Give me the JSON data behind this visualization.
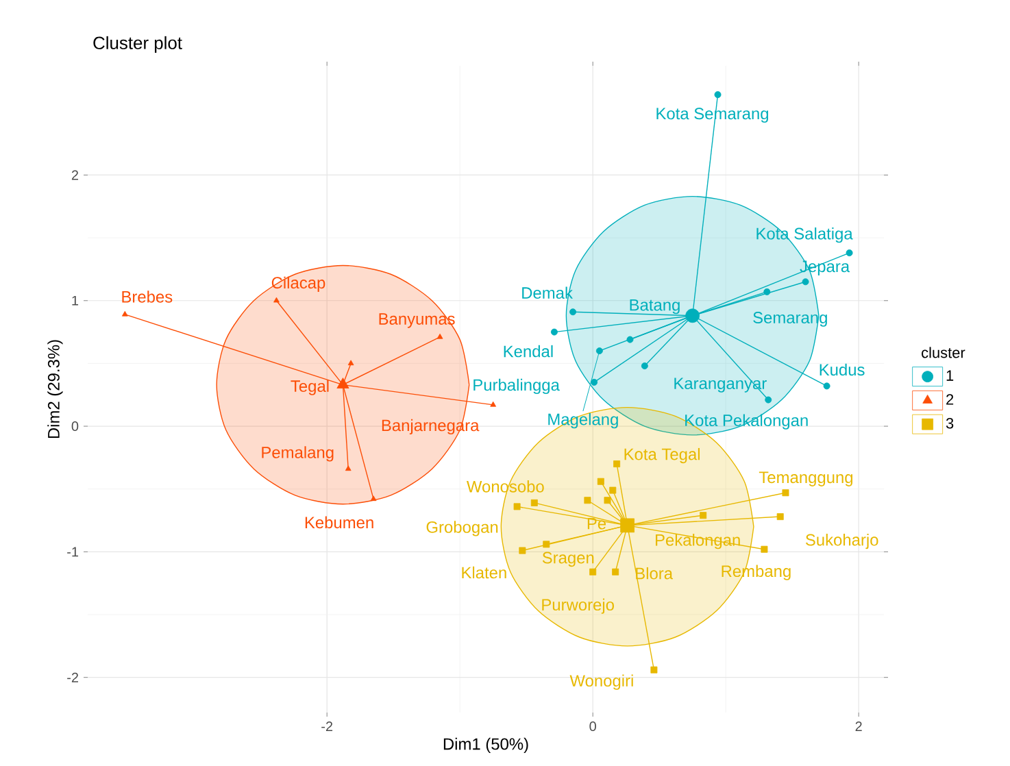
{
  "chart_data": {
    "type": "scatter",
    "title": "Cluster plot",
    "xlabel": "Dim1 (50%)",
    "ylabel": "Dim2 (29.3%)",
    "legend_title": "cluster",
    "legend": "right",
    "grid": true,
    "xlim": [
      -3.8,
      2.19
    ],
    "ylim": [
      -2.28,
      2.87
    ],
    "xticks": [
      -2,
      0,
      2
    ],
    "yticks": [
      -2,
      -1,
      0,
      1,
      2
    ],
    "series": [
      {
        "type": "area",
        "color": "#00AFBB",
        "x": [
          1.7,
          1.63,
          1.42,
          1.11,
          0.75,
          0.39,
          0.08,
          -0.13,
          -0.2,
          -0.13,
          0.08,
          0.39,
          0.75,
          1.11,
          1.42,
          1.63,
          1.7
        ],
        "values": [
          0.88,
          1.24,
          1.55,
          1.76,
          1.83,
          1.76,
          1.55,
          1.24,
          0.88,
          0.52,
          0.21,
          0.0,
          -0.07,
          0.0,
          0.21,
          0.52,
          0.88
        ]
      },
      {
        "type": "area",
        "color": "#FC4E07",
        "x": [
          -0.93,
          -1.0,
          -1.21,
          -1.52,
          -1.88,
          -2.24,
          -2.55,
          -2.76,
          -2.83,
          -2.76,
          -2.55,
          -2.24,
          -1.88,
          -1.52,
          -1.21,
          -1.0,
          -0.93
        ],
        "values": [
          0.33,
          0.69,
          1.0,
          1.21,
          1.28,
          1.21,
          1.0,
          0.69,
          0.33,
          -0.03,
          -0.34,
          -0.55,
          -0.62,
          -0.55,
          -0.34,
          -0.03,
          0.33
        ]
      },
      {
        "type": "area",
        "color": "#E7B800",
        "x": [
          1.21,
          1.14,
          0.93,
          0.62,
          0.26,
          -0.1,
          -0.41,
          -0.62,
          -0.69,
          -0.62,
          -0.41,
          -0.1,
          0.26,
          0.62,
          0.93,
          1.14,
          1.21
        ],
        "values": [
          -0.8,
          -0.44,
          -0.13,
          0.08,
          0.15,
          0.08,
          -0.13,
          -0.44,
          -0.8,
          -1.16,
          -1.47,
          -1.68,
          -1.75,
          -1.68,
          -1.47,
          -1.16,
          -0.8
        ]
      },
      {
        "type": "line",
        "color": "#00AFBB",
        "x": [
          0.75,
          0.94
        ],
        "values": [
          0.88,
          2.64
        ]
      },
      {
        "type": "line",
        "color": "#00AFBB",
        "x": [
          0.75,
          1.93
        ],
        "values": [
          0.88,
          1.38
        ]
      },
      {
        "type": "line",
        "color": "#00AFBB",
        "x": [
          0.75,
          1.6
        ],
        "values": [
          0.88,
          1.15
        ]
      },
      {
        "type": "line",
        "color": "#00AFBB",
        "x": [
          0.75,
          1.31
        ],
        "values": [
          0.88,
          1.07
        ]
      },
      {
        "type": "line",
        "color": "#00AFBB",
        "x": [
          0.75,
          -0.15
        ],
        "values": [
          0.88,
          0.91
        ]
      },
      {
        "type": "line",
        "color": "#00AFBB",
        "x": [
          0.75,
          -0.29
        ],
        "values": [
          0.88,
          0.75
        ]
      },
      {
        "type": "line",
        "color": "#00AFBB",
        "x": [
          0.75,
          0.28
        ],
        "values": [
          0.88,
          0.69
        ]
      },
      {
        "type": "line",
        "color": "#00AFBB",
        "x": [
          0.75,
          0.05
        ],
        "values": [
          0.88,
          0.6
        ]
      },
      {
        "type": "line",
        "color": "#00AFBB",
        "x": [
          0.75,
          0.39
        ],
        "values": [
          0.88,
          0.48
        ]
      },
      {
        "type": "line",
        "color": "#00AFBB",
        "x": [
          0.75,
          0.01
        ],
        "values": [
          0.88,
          0.35
        ]
      },
      {
        "type": "line",
        "color": "#00AFBB",
        "x": [
          0.75,
          1.32
        ],
        "values": [
          0.88,
          0.21
        ]
      },
      {
        "type": "line",
        "color": "#00AFBB",
        "x": [
          0.75,
          1.76
        ],
        "values": [
          0.88,
          0.32
        ]
      },
      {
        "type": "line",
        "color": "#FC4E07",
        "x": [
          -1.88,
          -3.52
        ],
        "values": [
          0.33,
          0.89
        ]
      },
      {
        "type": "line",
        "color": "#FC4E07",
        "x": [
          -1.88,
          -2.38
        ],
        "values": [
          0.33,
          1.0
        ]
      },
      {
        "type": "line",
        "color": "#FC4E07",
        "x": [
          -1.88,
          -1.15
        ],
        "values": [
          0.33,
          0.71
        ]
      },
      {
        "type": "line",
        "color": "#FC4E07",
        "x": [
          -1.88,
          -0.75
        ],
        "values": [
          0.33,
          0.17
        ]
      },
      {
        "type": "line",
        "color": "#FC4E07",
        "x": [
          -1.88,
          -1.82
        ],
        "values": [
          0.33,
          0.5
        ]
      },
      {
        "type": "line",
        "color": "#FC4E07",
        "x": [
          -1.88,
          -1.84
        ],
        "values": [
          0.33,
          -0.34
        ]
      },
      {
        "type": "line",
        "color": "#FC4E07",
        "x": [
          -1.88,
          -1.65
        ],
        "values": [
          0.33,
          -0.58
        ]
      },
      {
        "type": "line",
        "color": "#E7B800",
        "x": [
          0.26,
          0.18
        ],
        "values": [
          -0.79,
          -0.3
        ]
      },
      {
        "type": "line",
        "color": "#E7B800",
        "x": [
          0.26,
          0.06
        ],
        "values": [
          -0.79,
          -0.44
        ]
      },
      {
        "type": "line",
        "color": "#E7B800",
        "x": [
          0.26,
          0.15
        ],
        "values": [
          -0.79,
          -0.51
        ]
      },
      {
        "type": "line",
        "color": "#E7B800",
        "x": [
          0.26,
          -0.04
        ],
        "values": [
          -0.79,
          -0.59
        ]
      },
      {
        "type": "line",
        "color": "#E7B800",
        "x": [
          0.26,
          0.11
        ],
        "values": [
          -0.79,
          -0.59
        ]
      },
      {
        "type": "line",
        "color": "#E7B800",
        "x": [
          0.26,
          -0.44
        ],
        "values": [
          -0.79,
          -0.61
        ]
      },
      {
        "type": "line",
        "color": "#E7B800",
        "x": [
          0.26,
          -0.57
        ],
        "values": [
          -0.79,
          -0.64
        ]
      },
      {
        "type": "line",
        "color": "#E7B800",
        "x": [
          0.26,
          1.45
        ],
        "values": [
          -0.79,
          -0.53
        ]
      },
      {
        "type": "line",
        "color": "#E7B800",
        "x": [
          0.26,
          0.83
        ],
        "values": [
          -0.79,
          -0.71
        ]
      },
      {
        "type": "line",
        "color": "#E7B800",
        "x": [
          0.26,
          1.41
        ],
        "values": [
          -0.79,
          -0.72
        ]
      },
      {
        "type": "line",
        "color": "#E7B800",
        "x": [
          0.26,
          1.29
        ],
        "values": [
          -0.79,
          -0.98
        ]
      },
      {
        "type": "line",
        "color": "#E7B800",
        "x": [
          0.26,
          -0.35
        ],
        "values": [
          -0.79,
          -0.94
        ]
      },
      {
        "type": "line",
        "color": "#E7B800",
        "x": [
          0.26,
          -0.53
        ],
        "values": [
          -0.79,
          -0.99
        ]
      },
      {
        "type": "line",
        "color": "#E7B800",
        "x": [
          0.26,
          0.0
        ],
        "values": [
          -0.79,
          -1.16
        ]
      },
      {
        "type": "line",
        "color": "#E7B800",
        "x": [
          0.26,
          0.17
        ],
        "values": [
          -0.79,
          -1.16
        ]
      },
      {
        "type": "line",
        "color": "#E7B800",
        "x": [
          0.26,
          0.46
        ],
        "values": [
          -0.79,
          -1.94
        ]
      },
      {
        "name": "1",
        "marker": "circle",
        "color": "#00AFBB",
        "x": [
          0.94,
          1.93,
          1.6,
          1.31,
          -0.15,
          -0.29,
          0.28,
          0.05,
          0.39,
          0.01,
          1.32,
          1.76
        ],
        "values": [
          2.64,
          1.38,
          1.15,
          1.07,
          0.91,
          0.75,
          0.69,
          0.6,
          0.48,
          0.35,
          0.21,
          0.32
        ]
      },
      {
        "name": "2",
        "marker": "triangle",
        "color": "#FC4E07",
        "x": [
          -3.52,
          -2.38,
          -1.15,
          -0.75,
          -1.82,
          -1.84,
          -1.65
        ],
        "values": [
          0.89,
          1.0,
          0.71,
          0.17,
          0.5,
          -0.34,
          -0.58
        ]
      },
      {
        "name": "3",
        "marker": "square",
        "color": "#E7B800",
        "x": [
          0.18,
          0.06,
          0.15,
          -0.04,
          0.11,
          -0.44,
          -0.57,
          1.45,
          0.83,
          1.41,
          1.29,
          -0.35,
          -0.53,
          0.0,
          0.17,
          0.46
        ],
        "values": [
          -0.3,
          -0.44,
          -0.51,
          -0.59,
          -0.59,
          -0.61,
          -0.64,
          -0.53,
          -0.71,
          -0.72,
          -0.98,
          -0.94,
          -0.99,
          -1.16,
          -1.16,
          -1.94
        ]
      },
      {
        "marker": "circle",
        "color": "#00AFBB",
        "x": [
          0.75
        ],
        "values": [
          0.88
        ]
      },
      {
        "marker": "triangle",
        "color": "#FC4E07",
        "x": [
          -1.88
        ],
        "values": [
          0.33
        ]
      },
      {
        "marker": "square",
        "color": "#E7B800",
        "x": [
          0.26
        ],
        "values": [
          -0.79
        ]
      }
    ],
    "annotations": [
      {
        "text": "Kota Semarang",
        "x": 0.94,
        "y": 2.64
      },
      {
        "text": "Kota Salatiga",
        "x": 1.93,
        "y": 1.38
      },
      {
        "text": "Jepara",
        "x": 1.6,
        "y": 1.15
      },
      {
        "text": "Semarang",
        "x": 1.31,
        "y": 1.07
      },
      {
        "text": "Demak",
        "x": -0.15,
        "y": 0.91
      },
      {
        "text": "Batang",
        "x": 0.28,
        "y": 0.69
      },
      {
        "text": "Kendal",
        "x": -0.29,
        "y": 0.75
      },
      {
        "text": "Purbalingga",
        "x": 0.01,
        "y": 0.35
      },
      {
        "text": "Karanganyar",
        "x": 0.39,
        "y": 0.48
      },
      {
        "text": "Kudus",
        "x": 1.76,
        "y": 0.32
      },
      {
        "text": "Magelang",
        "x": 0.05,
        "y": 0.6
      },
      {
        "text": "Kota Pekalongan",
        "x": 1.32,
        "y": 0.21
      },
      {
        "text": "Brebes",
        "x": -3.52,
        "y": 0.89
      },
      {
        "text": "Cilacap",
        "x": -2.38,
        "y": 1.0
      },
      {
        "text": "Banyumas",
        "x": -1.15,
        "y": 0.71
      },
      {
        "text": "Tegal",
        "x": -1.88,
        "y": 0.33
      },
      {
        "text": "Banjarnegara",
        "x": -0.75,
        "y": 0.17
      },
      {
        "text": "Pemalang",
        "x": -1.84,
        "y": -0.34
      },
      {
        "text": "Kebumen",
        "x": -1.65,
        "y": -0.58
      },
      {
        "text": "Kota Tegal",
        "x": 0.18,
        "y": -0.3
      },
      {
        "text": "Wonosobo",
        "x": -0.44,
        "y": -0.61
      },
      {
        "text": "Temanggung",
        "x": 1.45,
        "y": -0.53
      },
      {
        "text": "Grobogan",
        "x": -0.57,
        "y": -0.64
      },
      {
        "text": "Pe",
        "x": 0.11,
        "y": -0.59
      },
      {
        "text": "Pekalongan",
        "x": 0.83,
        "y": -0.71
      },
      {
        "text": "Sukoharjo",
        "x": 1.41,
        "y": -0.72
      },
      {
        "text": "Sragen",
        "x": -0.35,
        "y": -0.94
      },
      {
        "text": "Klaten",
        "x": -0.53,
        "y": -0.99
      },
      {
        "text": "Blora",
        "x": 0.17,
        "y": -1.16
      },
      {
        "text": "Rembang",
        "x": 1.29,
        "y": -0.98
      },
      {
        "text": "Purworejo",
        "x": 0.0,
        "y": -1.16
      },
      {
        "text": "Wonogiri",
        "x": 0.46,
        "y": -1.94
      }
    ]
  }
}
